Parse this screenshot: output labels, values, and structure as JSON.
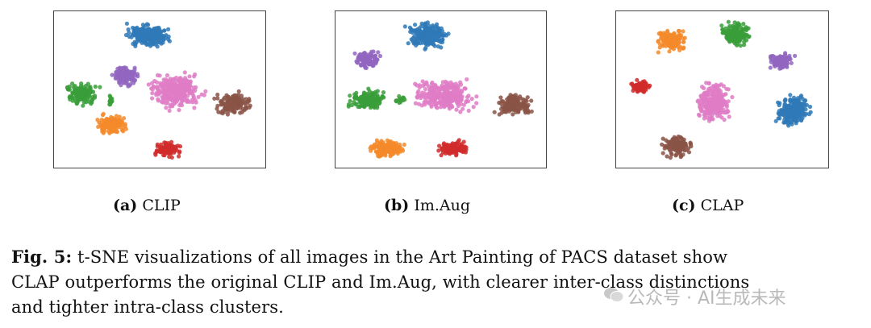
{
  "colors": {
    "blue": "#2f79b7",
    "orange": "#f58a2a",
    "green": "#3a9d3a",
    "red": "#d12b2b",
    "purple": "#9266bf",
    "brown": "#8a5446",
    "pink": "#df7cc5"
  },
  "panels": [
    {
      "tag": "(a)",
      "name": "CLIP"
    },
    {
      "tag": "(b)",
      "name": "Im.Aug"
    },
    {
      "tag": "(c)",
      "name": "CLAP"
    }
  ],
  "caption": {
    "label": "Fig. 5:",
    "line1": "t-SNE visualizations of all images in the Art Painting of PACS dataset show",
    "line2": "CLAP outperforms the original CLIP and Im.Aug, with clearer inter-class distinctions",
    "line3": "and tighter intra-class clusters."
  },
  "watermark": {
    "text": "公众号 · AI生成未来",
    "icon": "wechat-icon"
  }
}
